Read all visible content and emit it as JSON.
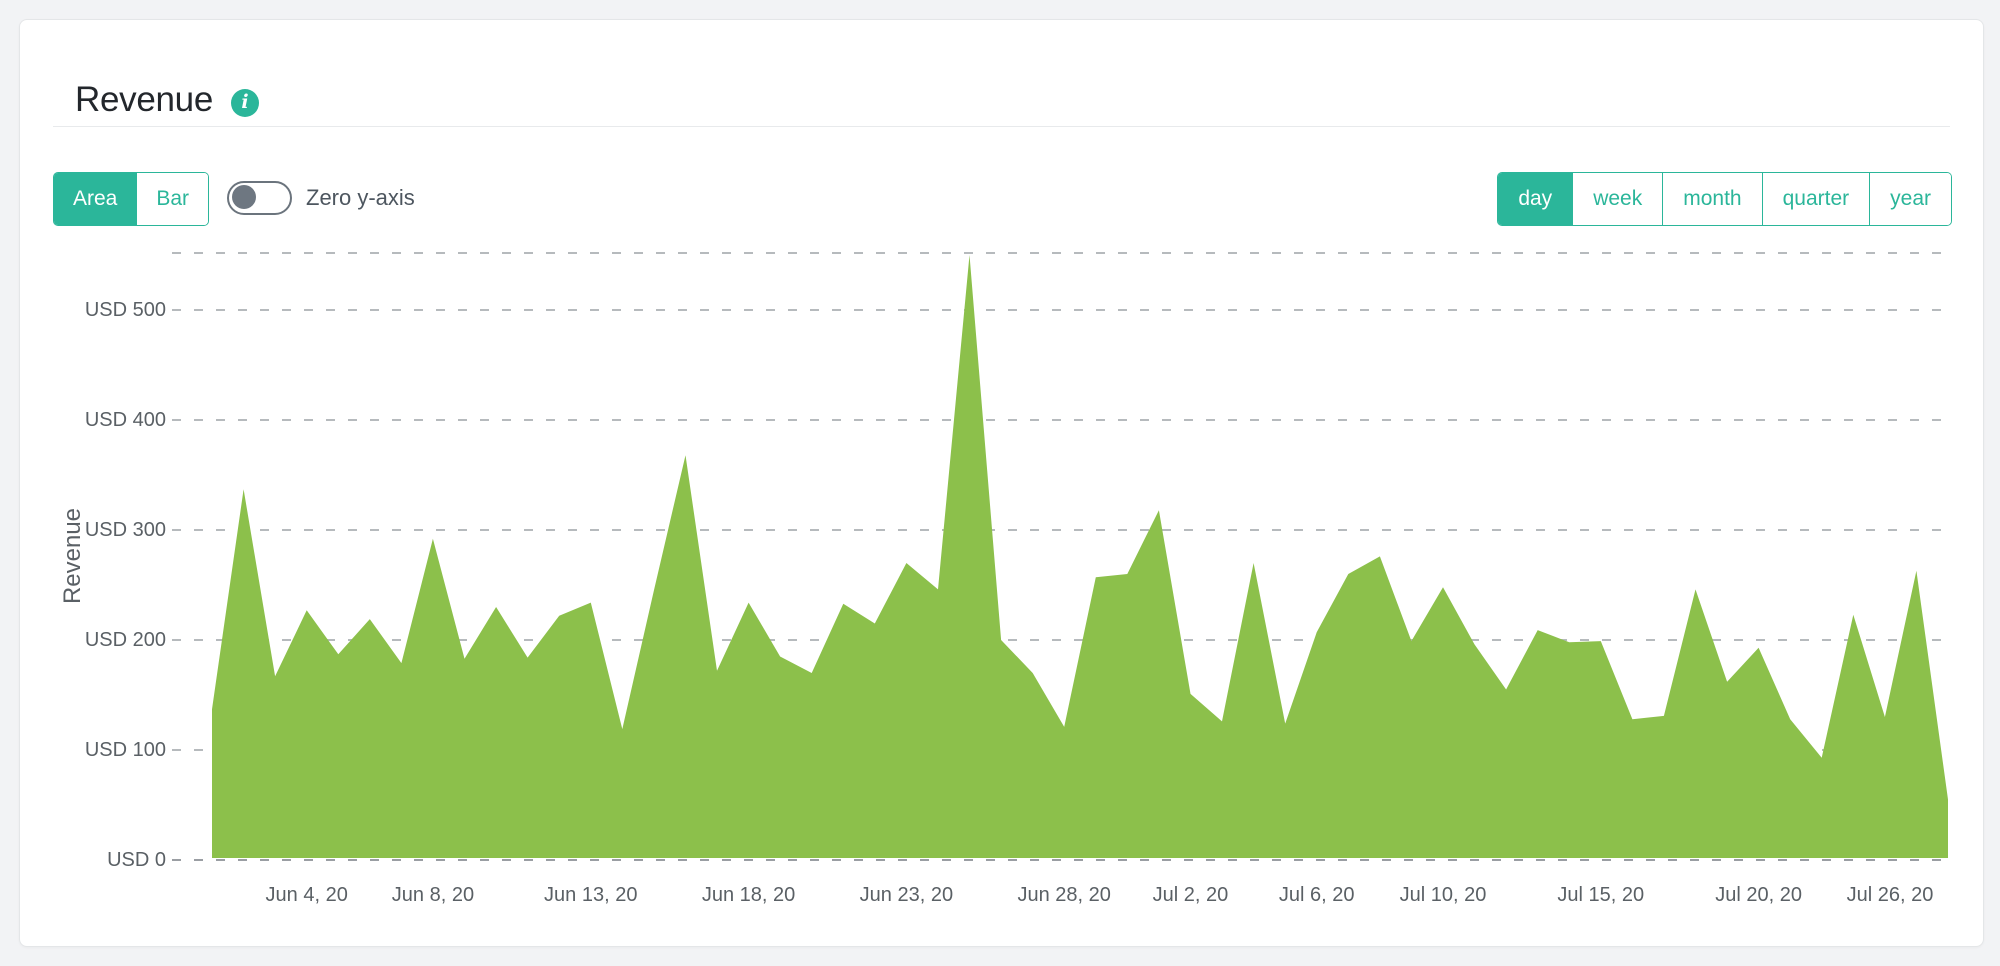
{
  "header": {
    "title": "Revenue",
    "info_icon": "info-icon"
  },
  "controls": {
    "chart_type": {
      "options": [
        "Area",
        "Bar"
      ],
      "selected": "Area"
    },
    "zero_y_axis": {
      "label": "Zero y-axis",
      "enabled": false
    },
    "period": {
      "options": [
        "day",
        "week",
        "month",
        "quarter",
        "year"
      ],
      "selected": "day"
    }
  },
  "colors": {
    "accent_teal": "#2bb69a",
    "area_green": "#8cc04b",
    "grid_gray": "#b6babd",
    "baseline_gray": "#9a9ea3",
    "text_dark": "#23272c",
    "text_gray": "#5a6065",
    "toggle_gray": "#6e7781"
  },
  "chart_data": {
    "type": "area",
    "title": "Revenue",
    "ylabel": "Revenue",
    "xlabel": "",
    "unit": "USD",
    "grid": "dashed-horizontal",
    "legend": "none",
    "ylim": [
      0,
      552
    ],
    "x": [
      "Jun 1",
      "Jun 2",
      "Jun 3",
      "Jun 4",
      "Jun 5",
      "Jun 6",
      "Jun 7",
      "Jun 8",
      "Jun 9",
      "Jun 10",
      "Jun 11",
      "Jun 12",
      "Jun 13",
      "Jun 14",
      "Jun 15",
      "Jun 16",
      "Jun 17",
      "Jun 18",
      "Jun 19",
      "Jun 20",
      "Jun 21",
      "Jun 22",
      "Jun 23",
      "Jun 24",
      "Jun 25",
      "Jun 26",
      "Jun 27",
      "Jun 28",
      "Jun 29",
      "Jun 30",
      "Jul 1",
      "Jul 2",
      "Jul 3",
      "Jul 4",
      "Jul 5",
      "Jul 6",
      "Jul 7",
      "Jul 8",
      "Jul 9",
      "Jul 10",
      "Jul 11",
      "Jul 12",
      "Jul 13",
      "Jul 14",
      "Jul 15",
      "Jul 16",
      "Jul 17",
      "Jul 18",
      "Jul 19",
      "Jul 20",
      "Jul 21",
      "Jul 22",
      "Jul 23",
      "Jul 24",
      "Jul 25",
      "Jul 26"
    ],
    "values": [
      137,
      337,
      167,
      227,
      187,
      219,
      179,
      292,
      183,
      230,
      184,
      222,
      234,
      119,
      245,
      368,
      172,
      234,
      185,
      170,
      233,
      215,
      270,
      246,
      550,
      200,
      170,
      121,
      257,
      260,
      318,
      151,
      126,
      270,
      124,
      207,
      260,
      276,
      199,
      248,
      196,
      155,
      209,
      198,
      199,
      128,
      131,
      246,
      162,
      193,
      128,
      93,
      223,
      130,
      263,
      55
    ],
    "y_ticks": [
      {
        "label": "USD 0",
        "value": 0
      },
      {
        "label": "USD 100",
        "value": 100
      },
      {
        "label": "USD 200",
        "value": 200
      },
      {
        "label": "USD 300",
        "value": 300
      },
      {
        "label": "USD 400",
        "value": 400
      },
      {
        "label": "USD 500",
        "value": 500
      }
    ],
    "x_ticks": [
      {
        "label": "Jun 4, 20",
        "index": 3
      },
      {
        "label": "Jun 8, 20",
        "index": 7
      },
      {
        "label": "Jun 13, 20",
        "index": 12
      },
      {
        "label": "Jun 18, 20",
        "index": 17
      },
      {
        "label": "Jun 23, 20",
        "index": 22
      },
      {
        "label": "Jun 28, 20",
        "index": 27
      },
      {
        "label": "Jul 2, 20",
        "index": 31
      },
      {
        "label": "Jul 6, 20",
        "index": 35
      },
      {
        "label": "Jul 10, 20",
        "index": 39
      },
      {
        "label": "Jul 15, 20",
        "index": 44
      },
      {
        "label": "Jul 20, 20",
        "index": 49
      },
      {
        "label": "Jul 26, 20",
        "index": 55
      }
    ]
  }
}
